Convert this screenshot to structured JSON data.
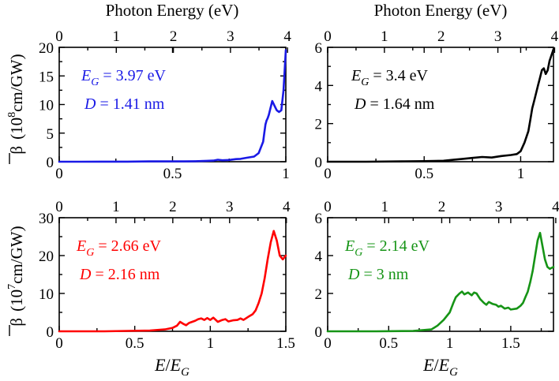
{
  "figure": {
    "top_axis_label": "Photon Energy (eV)",
    "y_label_row1": {
      "symbol": "β",
      "prefix": "(10",
      "exponent": "8",
      "suffix": "cm/GW)"
    },
    "y_label_row2": {
      "symbol": "β",
      "prefix": "(10",
      "exponent": "7",
      "suffix": "cm/GW)"
    },
    "x_label": {
      "numerator": "E",
      "slash": "/",
      "denominator_main": "E",
      "denominator_sub": "G"
    }
  },
  "chart_data": [
    {
      "type": "line",
      "id": "panel-1",
      "color": "#1a1ae6",
      "xlim": [
        0,
        1
      ],
      "ylim": [
        0,
        20
      ],
      "xticks": [
        "0",
        "0.5",
        "1"
      ],
      "yticks": [
        "0",
        "5",
        "10",
        "15",
        "20"
      ],
      "top_ticks": [
        "0",
        "1",
        "2",
        "3",
        "4"
      ],
      "top_range_ev": [
        0,
        3.97
      ],
      "annotation": {
        "eg_sym": "E",
        "eg_sub": "G",
        "eg_val": " = 3.97 eV",
        "d_sym": "D",
        "d_val": " = 1.41 nm"
      },
      "x": [
        0,
        0.1,
        0.2,
        0.3,
        0.4,
        0.5,
        0.55,
        0.6,
        0.65,
        0.68,
        0.7,
        0.72,
        0.75,
        0.78,
        0.8,
        0.83,
        0.86,
        0.88,
        0.9,
        0.905,
        0.91,
        0.915,
        0.92,
        0.925,
        0.93,
        0.94,
        0.95,
        0.96,
        0.97,
        0.98,
        0.99,
        1.0
      ],
      "y": [
        0,
        0,
        0.02,
        0.02,
        0.05,
        0.05,
        0.05,
        0.08,
        0.15,
        0.2,
        0.35,
        0.25,
        0.3,
        0.45,
        0.5,
        0.7,
        0.9,
        1.5,
        3.5,
        5.0,
        6.5,
        7.2,
        7.6,
        8.2,
        9.0,
        10.6,
        9.8,
        9.0,
        8.7,
        9.0,
        12.5,
        19.5
      ]
    },
    {
      "type": "line",
      "id": "panel-2",
      "color": "#000000",
      "xlim": [
        0,
        1.17
      ],
      "ylim": [
        0,
        6
      ],
      "xticks": [
        "0",
        "0.5",
        "1"
      ],
      "yticks": [
        "0",
        "2",
        "4",
        "6"
      ],
      "top_ticks": [
        "0",
        "1",
        "2",
        "3",
        "4"
      ],
      "top_range_ev": [
        0,
        3.98
      ],
      "annotation": {
        "eg_sym": "E",
        "eg_sub": "G",
        "eg_val": " = 3.4 eV",
        "d_sym": "D",
        "d_val": " = 1.64 nm"
      },
      "x": [
        0,
        0.2,
        0.4,
        0.5,
        0.6,
        0.65,
        0.7,
        0.75,
        0.8,
        0.85,
        0.9,
        0.95,
        0.98,
        1.0,
        1.02,
        1.04,
        1.05,
        1.06,
        1.07,
        1.08,
        1.09,
        1.1,
        1.11,
        1.12,
        1.13,
        1.14,
        1.15,
        1.16,
        1.17
      ],
      "y": [
        0,
        0,
        0.02,
        0.03,
        0.05,
        0.1,
        0.15,
        0.2,
        0.25,
        0.22,
        0.3,
        0.35,
        0.4,
        0.55,
        1.0,
        1.6,
        2.2,
        2.8,
        3.2,
        3.6,
        4.0,
        4.4,
        4.8,
        4.9,
        4.6,
        4.8,
        5.3,
        5.6,
        5.9
      ]
    },
    {
      "type": "line",
      "id": "panel-3",
      "color": "#ff0000",
      "xlim": [
        0,
        1.5
      ],
      "ylim": [
        0,
        30
      ],
      "xticks": [
        "0",
        "0.5",
        "1",
        "1.5"
      ],
      "yticks": [
        "0",
        "10",
        "20",
        "30"
      ],
      "top_ticks": [
        "0",
        "1",
        "2",
        "3",
        "4"
      ],
      "top_range_ev": [
        0,
        3.99
      ],
      "annotation": {
        "eg_sym": "E",
        "eg_sub": "G",
        "eg_val": " = 2.66 eV",
        "d_sym": "D",
        "d_val": " = 2.16 nm"
      },
      "x": [
        0,
        0.3,
        0.6,
        0.7,
        0.75,
        0.78,
        0.8,
        0.82,
        0.84,
        0.86,
        0.88,
        0.9,
        0.92,
        0.94,
        0.96,
        0.98,
        1.0,
        1.02,
        1.05,
        1.08,
        1.1,
        1.12,
        1.15,
        1.18,
        1.2,
        1.22,
        1.25,
        1.28,
        1.3,
        1.32,
        1.34,
        1.36,
        1.38,
        1.4,
        1.42,
        1.44,
        1.46,
        1.48,
        1.5
      ],
      "y": [
        0,
        0,
        0.2,
        0.5,
        0.9,
        1.5,
        2.5,
        2.0,
        1.6,
        2.2,
        2.5,
        2.8,
        3.2,
        3.4,
        3.0,
        3.5,
        3.0,
        3.6,
        2.5,
        3.0,
        3.2,
        2.6,
        2.9,
        3.0,
        3.4,
        3.0,
        3.8,
        4.5,
        5.5,
        7.5,
        10.0,
        14.0,
        19.0,
        23.5,
        26.5,
        24.0,
        20.0,
        19.0,
        20.0
      ]
    },
    {
      "type": "line",
      "id": "panel-4",
      "color": "#169416",
      "xlim": [
        0,
        1.85
      ],
      "ylim": [
        0,
        6
      ],
      "xticks": [
        "0",
        "0.5",
        "1",
        "1.5"
      ],
      "yticks": [
        "0",
        "2",
        "4",
        "6"
      ],
      "top_ticks": [
        "0",
        "1",
        "2",
        "3",
        "4"
      ],
      "top_range_ev": [
        0,
        3.96
      ],
      "annotation": {
        "eg_sym": "E",
        "eg_sub": "G",
        "eg_val": " = 2.14 eV",
        "d_sym": "D",
        "d_val": " = 3 nm"
      },
      "x": [
        0,
        0.4,
        0.7,
        0.85,
        0.9,
        0.95,
        1.0,
        1.03,
        1.05,
        1.08,
        1.1,
        1.12,
        1.15,
        1.18,
        1.2,
        1.22,
        1.25,
        1.28,
        1.3,
        1.32,
        1.35,
        1.38,
        1.4,
        1.42,
        1.45,
        1.48,
        1.5,
        1.55,
        1.58,
        1.6,
        1.62,
        1.64,
        1.66,
        1.68,
        1.7,
        1.72,
        1.74,
        1.76,
        1.78,
        1.8,
        1.82,
        1.85
      ],
      "y": [
        0,
        0,
        0.02,
        0.1,
        0.3,
        0.6,
        1.0,
        1.5,
        1.8,
        2.0,
        2.1,
        1.95,
        2.05,
        1.9,
        2.05,
        2.0,
        1.7,
        1.5,
        1.4,
        1.55,
        1.45,
        1.4,
        1.3,
        1.35,
        1.2,
        1.25,
        1.15,
        1.2,
        1.35,
        1.5,
        1.8,
        2.1,
        2.6,
        3.2,
        4.0,
        4.8,
        5.2,
        4.5,
        3.8,
        3.4,
        3.3,
        3.4
      ]
    }
  ]
}
